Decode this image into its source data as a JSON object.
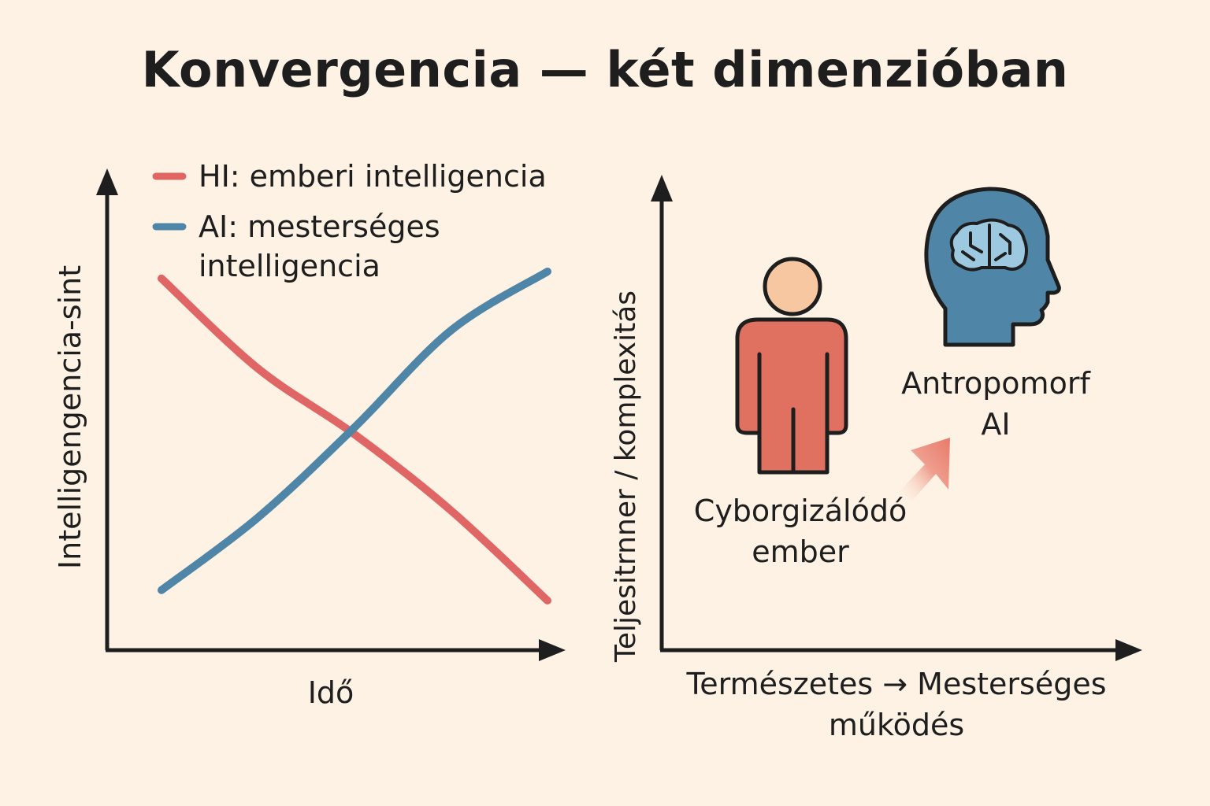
{
  "title": "Konvergencia — két dimenzióban",
  "colors": {
    "hi": "#e06666",
    "ai": "#4f86a8",
    "axis": "#1e1e1e",
    "bg": "#fdf2e3"
  },
  "chart_data": [
    {
      "type": "line",
      "xlabel": "Idő",
      "ylabel": "Intelligengencia-sint",
      "xlim": [
        0,
        10
      ],
      "ylim": [
        0,
        10
      ],
      "grid": false,
      "legend_position": "top-left",
      "series": [
        {
          "name": "HI: emberi intelligencia",
          "color": "#e06666",
          "x": [
            0,
            2.5,
            5,
            7.5,
            10
          ],
          "y": [
            9.8,
            7.2,
            5.3,
            3.1,
            0.5
          ]
        },
        {
          "name": "AI: mesterséges intelligencia",
          "color": "#4f86a8",
          "legend_lines": [
            "AI: mesterséges",
            "intelligencia"
          ],
          "x": [
            0,
            2.5,
            5,
            7.5,
            10
          ],
          "y": [
            0.8,
            2.9,
            5.5,
            8.3,
            10
          ]
        }
      ]
    },
    {
      "type": "diagram",
      "xlabel": "Természetes → Mesterséges",
      "xlabel_line2": "működés",
      "ylabel": "Teljesitrnner / komplexitás",
      "items": [
        {
          "label_lines": [
            "Cyborgizálódó",
            "ember"
          ],
          "icon": "person-icon",
          "color": "#e07060"
        },
        {
          "label_lines": [
            "Antropomorf",
            "AI"
          ],
          "icon": "ai-head-brain-icon",
          "color": "#4f86a8"
        }
      ],
      "arrow": {
        "from": "Cyborgizálódó ember",
        "to": "Antropomorf AI",
        "color": "#e87a6a"
      }
    }
  ]
}
